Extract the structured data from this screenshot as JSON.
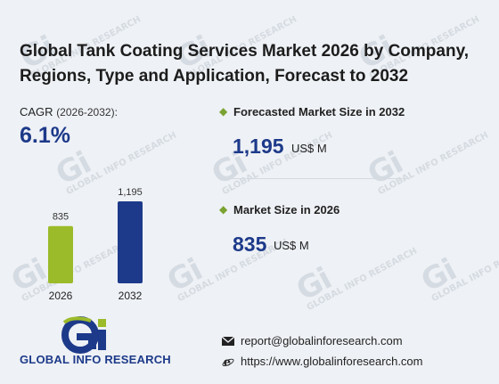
{
  "watermark": {
    "brand": "Gi",
    "text": "GLOBAL INFO RESEARCH"
  },
  "title": "Global Tank Coating Services Market 2026 by Company, Regions, Type and Application, Forecast to 2032",
  "cagr": {
    "label": "CAGR",
    "period": "(2026-2032):",
    "value": "6.1%"
  },
  "chart_data": {
    "type": "bar",
    "categories": [
      "2026",
      "2032"
    ],
    "values": [
      835,
      1195
    ],
    "value_labels": [
      "835",
      "1,195"
    ],
    "colors": [
      "#9cbb2a",
      "#1d3a8a"
    ],
    "ylim": [
      0,
      1195
    ]
  },
  "forecast": {
    "label": "Forecasted Market Size in 2032",
    "value": "1,195",
    "unit": "US$ M"
  },
  "market": {
    "label": "Market Size in 2026",
    "value": "835",
    "unit": "US$ M"
  },
  "brand": {
    "logo_text": "GLOBAL INFO RESEARCH",
    "icon": "gi-logo-icon"
  },
  "contact": {
    "email": "report@globalinforesearch.com",
    "website": "https://www.globalinforesearch.com",
    "email_icon": "envelope-icon",
    "web_icon": "globe-e-icon"
  }
}
